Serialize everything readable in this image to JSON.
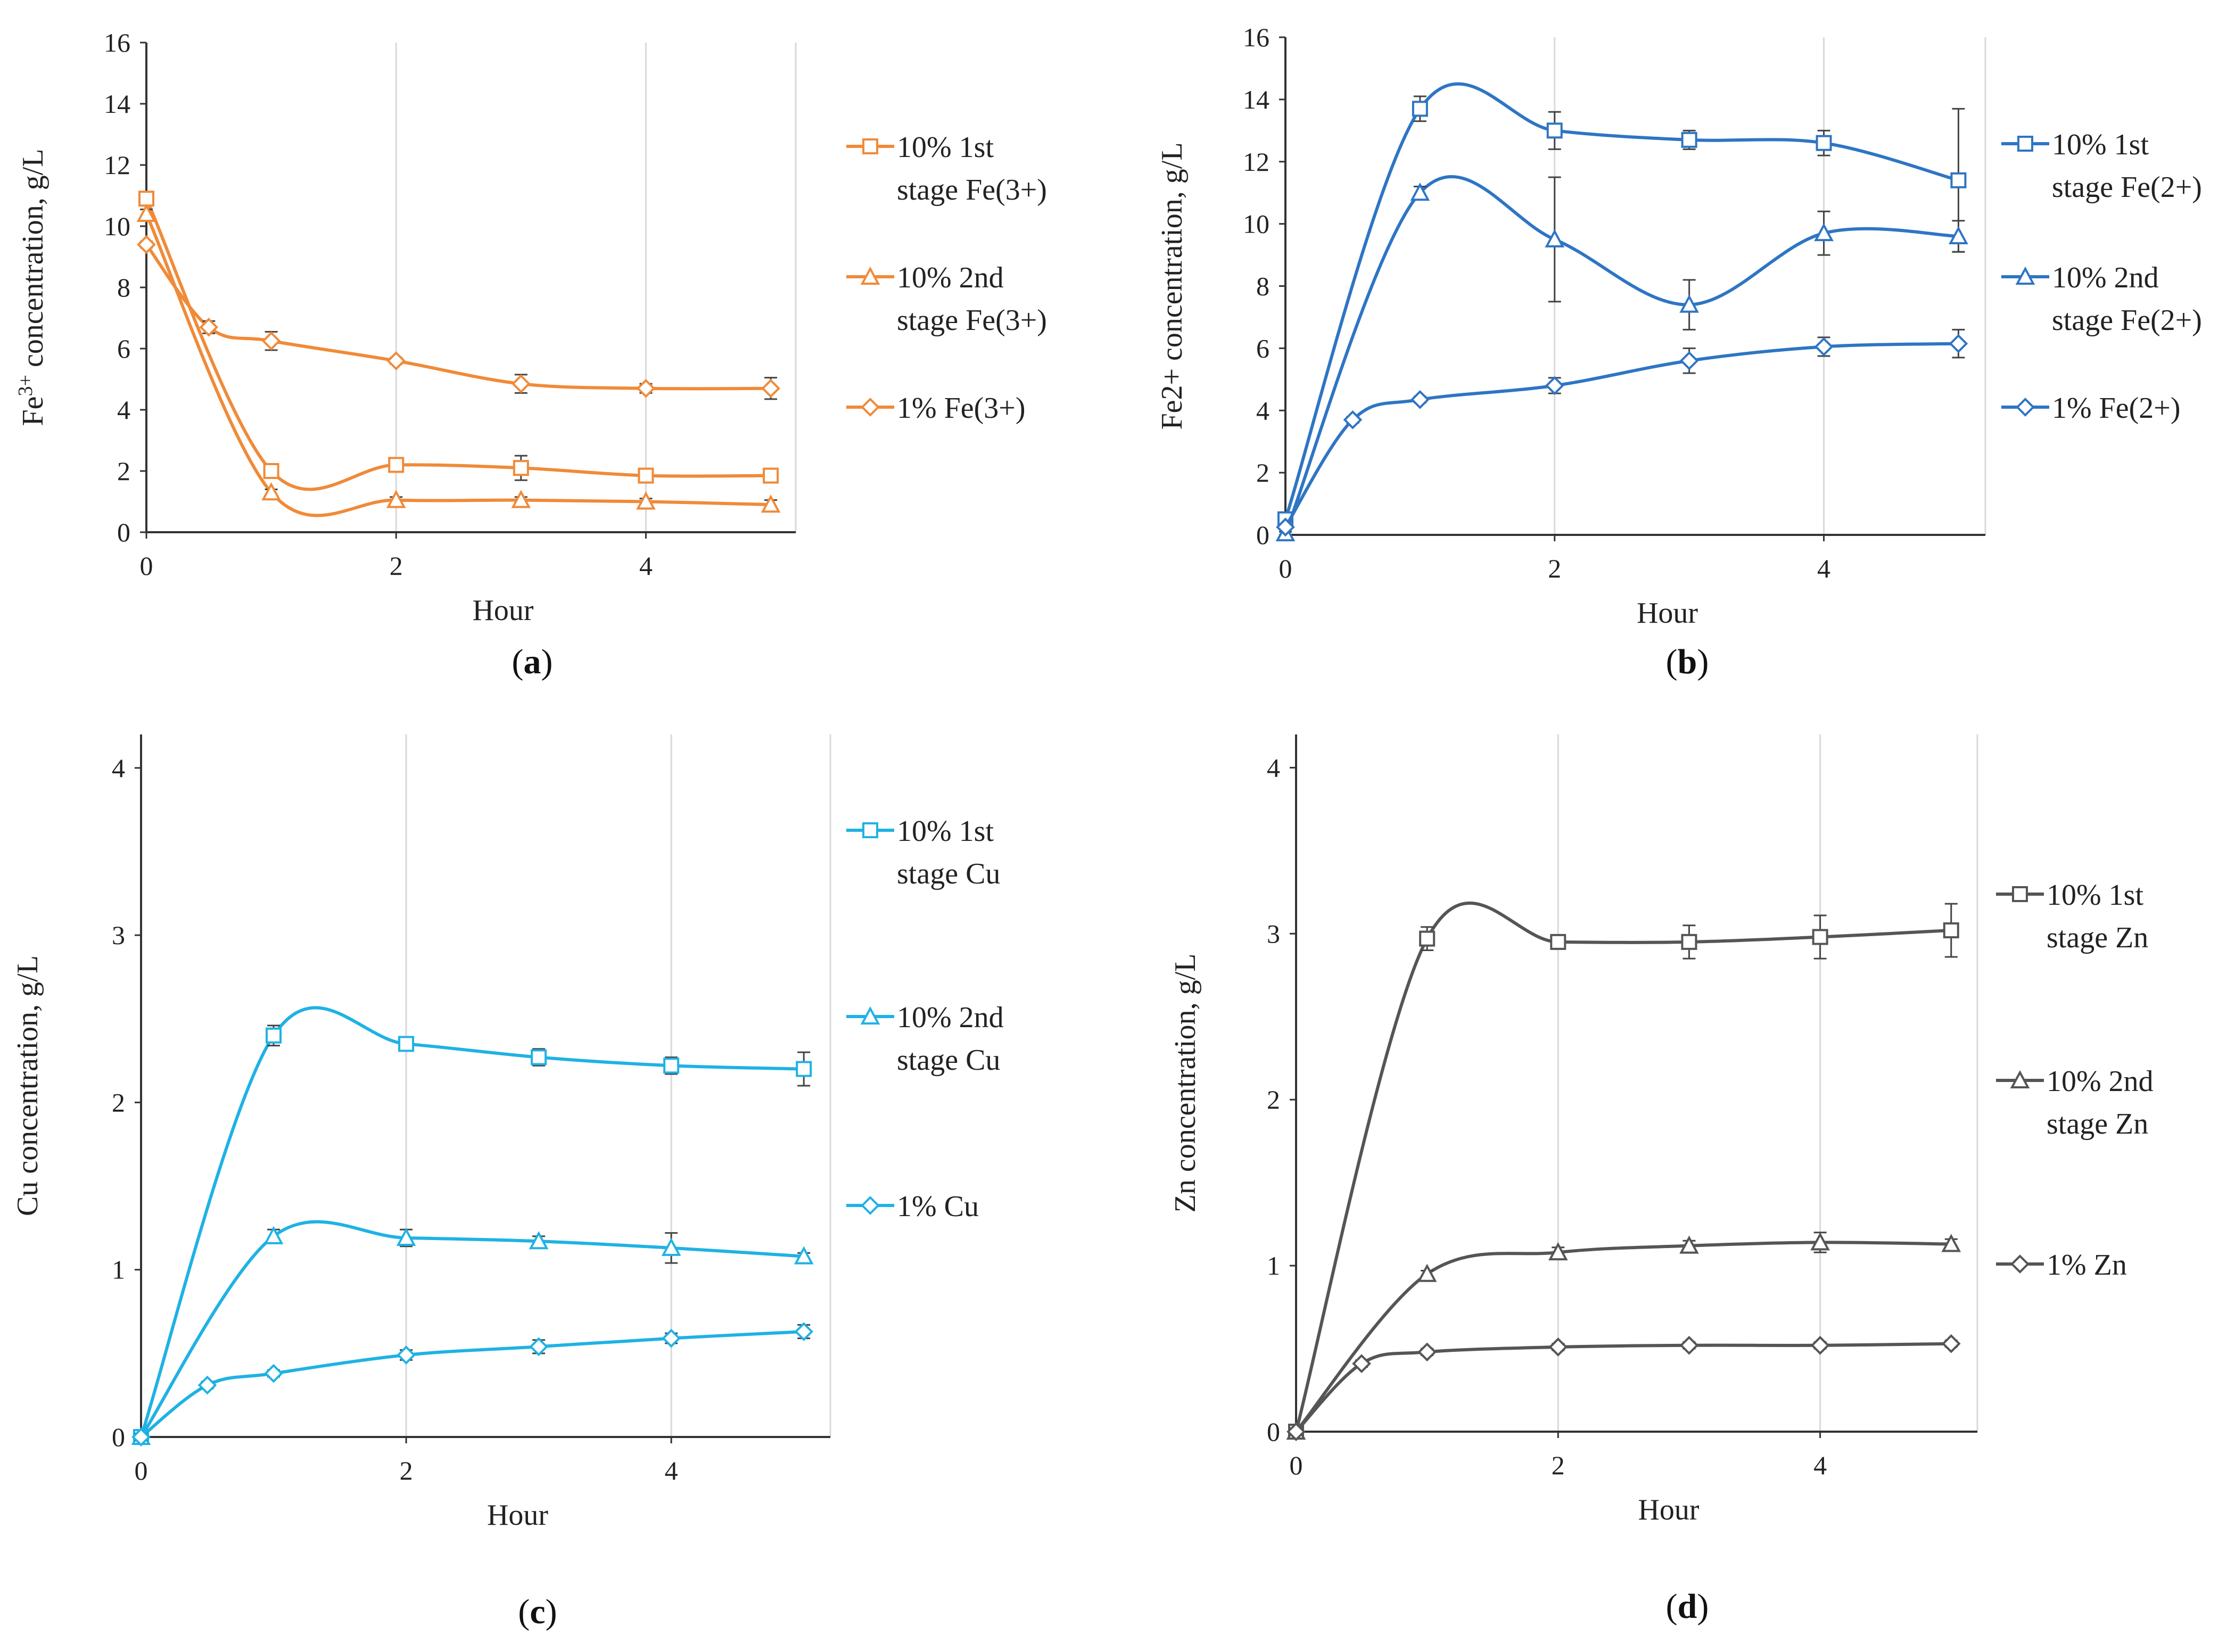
{
  "chart_data": [
    {
      "id": "a",
      "type": "line",
      "panel_label": "a",
      "color": "#F08A38",
      "ylabel": "Fe3+ concentration, g/L",
      "ylabel_main": "Fe",
      "ylabel_sup": "3+",
      "ylabel_rest": " concentration, g/L",
      "xlabel": "Hour",
      "xlim": [
        0,
        5.2
      ],
      "ylim": [
        0,
        16
      ],
      "xticks": [
        0,
        2,
        4
      ],
      "yticks": [
        0,
        2,
        4,
        6,
        8,
        10,
        12,
        14,
        16
      ],
      "grid": "vertical",
      "legend_position": "right",
      "series": [
        {
          "name": "10% 1st stage Fe(3+)",
          "legend_lines": [
            "10% 1st",
            "stage Fe(3+)"
          ],
          "marker": "square",
          "x": [
            0,
            1,
            2,
            3,
            4,
            5
          ],
          "y": [
            10.9,
            2.0,
            2.2,
            2.1,
            1.85,
            1.85
          ],
          "err": [
            0.15,
            0.1,
            0.2,
            0.4,
            0.1,
            0.1
          ]
        },
        {
          "name": "10% 2nd stage Fe(3+)",
          "legend_lines": [
            "10% 2nd",
            "stage Fe(3+)"
          ],
          "marker": "triangle",
          "x": [
            0,
            1,
            2,
            3,
            4,
            5
          ],
          "y": [
            10.4,
            1.3,
            1.05,
            1.05,
            1.0,
            0.9
          ],
          "err": [
            0.15,
            0.1,
            0.1,
            0.1,
            0.1,
            0.15
          ]
        },
        {
          "name": "1% Fe(3+)",
          "legend_lines": [
            "1% Fe(3+)"
          ],
          "marker": "diamond",
          "x": [
            0,
            0.5,
            1,
            2,
            3,
            4,
            5
          ],
          "y": [
            9.4,
            6.7,
            6.25,
            5.6,
            4.85,
            4.7,
            4.7
          ],
          "err": [
            0.1,
            0.2,
            0.3,
            0.1,
            0.3,
            0.15,
            0.35
          ]
        }
      ]
    },
    {
      "id": "b",
      "type": "line",
      "panel_label": "b",
      "color": "#2E75C4",
      "ylabel": "Fe2+  concentration, g/L",
      "xlabel": "Hour",
      "xlim": [
        0,
        5.2
      ],
      "ylim": [
        0,
        16
      ],
      "xticks": [
        0,
        2,
        4
      ],
      "yticks": [
        0,
        2,
        4,
        6,
        8,
        10,
        12,
        14,
        16
      ],
      "grid": "vertical",
      "legend_position": "right",
      "series": [
        {
          "name": "10% 1st stage Fe(2+)",
          "legend_lines": [
            "10% 1st",
            "stage Fe(2+)"
          ],
          "marker": "square",
          "x": [
            0,
            1,
            2,
            3,
            4,
            5
          ],
          "y": [
            0.5,
            13.7,
            13.0,
            12.7,
            12.6,
            11.4
          ],
          "err": [
            0.2,
            0.4,
            0.6,
            0.3,
            0.4,
            2.3
          ]
        },
        {
          "name": "10% 2nd stage Fe(2+)",
          "legend_lines": [
            "10% 2nd",
            "stage Fe(2+)"
          ],
          "marker": "triangle",
          "x": [
            0,
            1,
            2,
            3,
            4,
            5
          ],
          "y": [
            0.05,
            11.0,
            9.5,
            7.4,
            9.7,
            9.6
          ],
          "err": [
            0.05,
            0.2,
            2.0,
            0.8,
            0.7,
            0.5
          ]
        },
        {
          "name": "1% Fe(2+)",
          "legend_lines": [
            "1% Fe(2+)"
          ],
          "marker": "diamond",
          "x": [
            0,
            0.5,
            1,
            2,
            3,
            4,
            5
          ],
          "y": [
            0.25,
            3.7,
            4.35,
            4.8,
            5.6,
            6.05,
            6.15
          ],
          "err": [
            0.05,
            0.1,
            0.1,
            0.25,
            0.4,
            0.3,
            0.45
          ]
        }
      ]
    },
    {
      "id": "c",
      "type": "line",
      "panel_label": "c",
      "color": "#1FB2E4",
      "ylabel": "Cu concentration, g/L",
      "xlabel": "Hour",
      "xlim": [
        0,
        5.2
      ],
      "ylim": [
        0,
        4.2
      ],
      "xticks": [
        0,
        2,
        4
      ],
      "yticks": [
        0,
        1,
        2,
        3,
        4
      ],
      "grid": "vertical",
      "legend_position": "right",
      "series": [
        {
          "name": "10% 1st stage Cu",
          "legend_lines": [
            "10% 1st",
            "stage Cu"
          ],
          "marker": "square",
          "x": [
            0,
            1,
            2,
            3,
            4,
            5
          ],
          "y": [
            0.0,
            2.4,
            2.35,
            2.27,
            2.22,
            2.2
          ],
          "err": [
            0.02,
            0.06,
            0.03,
            0.05,
            0.05,
            0.1
          ]
        },
        {
          "name": "10% 2nd stage Cu",
          "legend_lines": [
            "10% 2nd",
            "stage Cu"
          ],
          "marker": "triangle",
          "x": [
            0,
            1,
            2,
            3,
            4,
            5
          ],
          "y": [
            0.0,
            1.2,
            1.19,
            1.17,
            1.13,
            1.08
          ],
          "err": [
            0.02,
            0.04,
            0.05,
            0.03,
            0.09,
            0.02
          ]
        },
        {
          "name": "1% Cu",
          "legend_lines": [
            "1% Cu"
          ],
          "marker": "diamond",
          "x": [
            0,
            0.5,
            1,
            2,
            3,
            4,
            5
          ],
          "y": [
            0.0,
            0.31,
            0.38,
            0.49,
            0.54,
            0.59,
            0.63
          ],
          "err": [
            0.02,
            0.02,
            0.02,
            0.03,
            0.04,
            0.03,
            0.04
          ]
        }
      ]
    },
    {
      "id": "d",
      "type": "line",
      "panel_label": "d",
      "color": "#555555",
      "ylabel": "Zn concentration, g/L",
      "xlabel": "Hour",
      "xlim": [
        0,
        5.2
      ],
      "ylim": [
        0,
        4.2
      ],
      "xticks": [
        0,
        2,
        4
      ],
      "yticks": [
        0,
        1,
        2,
        3,
        4
      ],
      "grid": "vertical",
      "legend_position": "right",
      "series": [
        {
          "name": "10% 1st stage Zn",
          "legend_lines": [
            "10% 1st",
            "stage Zn"
          ],
          "marker": "square",
          "x": [
            0,
            1,
            2,
            3,
            4,
            5
          ],
          "y": [
            0.0,
            2.97,
            2.95,
            2.95,
            2.98,
            3.02
          ],
          "err": [
            0.02,
            0.07,
            0.03,
            0.1,
            0.13,
            0.16
          ]
        },
        {
          "name": "10% 2nd stage Zn",
          "legend_lines": [
            "10% 2nd",
            "stage Zn"
          ],
          "marker": "triangle",
          "x": [
            0,
            1,
            2,
            3,
            4,
            5
          ],
          "y": [
            0.0,
            0.95,
            1.08,
            1.12,
            1.14,
            1.13
          ],
          "err": [
            0.02,
            0.02,
            0.03,
            0.03,
            0.06,
            0.03
          ]
        },
        {
          "name": "1% Zn",
          "legend_lines": [
            "1% Zn"
          ],
          "marker": "diamond",
          "x": [
            0,
            0.5,
            1,
            2,
            3,
            4,
            5
          ],
          "y": [
            0.0,
            0.41,
            0.48,
            0.51,
            0.52,
            0.52,
            0.53
          ],
          "err": [
            0.01,
            0.02,
            0.02,
            0.02,
            0.02,
            0.02,
            0.02
          ]
        }
      ]
    }
  ]
}
